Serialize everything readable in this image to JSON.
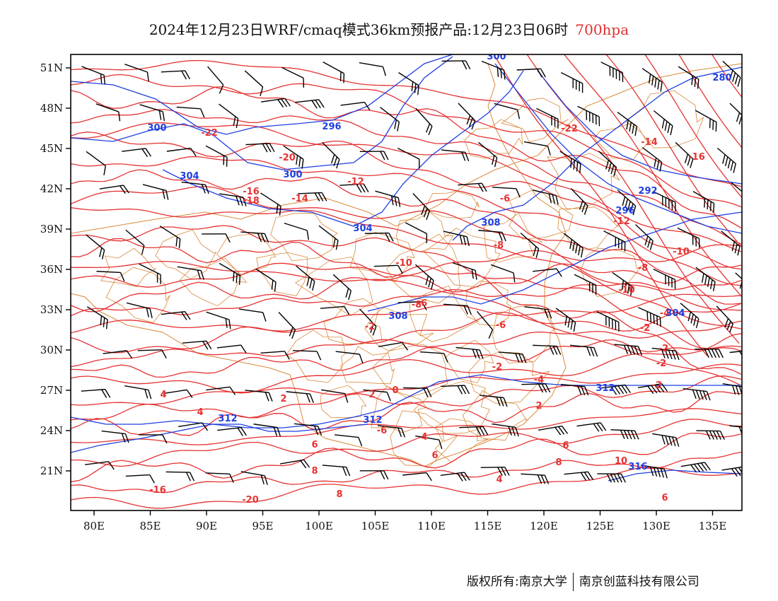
{
  "title": {
    "main": "2024年12月23日WRF/cmaq模式36km预报产品:12月23日06时",
    "level": "700hpa",
    "level_color": "#e03030"
  },
  "map": {
    "lon_ticks": [
      "80E",
      "85E",
      "90E",
      "95E",
      "100E",
      "105E",
      "110E",
      "115E",
      "120E",
      "125E",
      "130E",
      "135E"
    ],
    "lat_ticks": [
      "51N",
      "48N",
      "45N",
      "42N",
      "39N",
      "36N",
      "33N",
      "30N",
      "27N",
      "24N",
      "21N"
    ],
    "colors": {
      "temperature": "#e63232",
      "height": "#1f3fe0",
      "boundaries": "#d9893a",
      "wind_barbs": "#000000"
    },
    "temperature_labels": [
      "-22",
      "-20",
      "-16",
      "-18",
      "-14",
      "-12",
      "-10",
      "-10",
      "-8",
      "-6",
      "-2",
      "-2",
      "0",
      "2",
      "2",
      "4",
      "4",
      "6",
      "6",
      "8",
      "8",
      "-16",
      "-20",
      "-22",
      "-14",
      "-16",
      "-12",
      "-10",
      "-8",
      "-6",
      "-4",
      "-2",
      "-2",
      "-2",
      "-2",
      "2",
      "4",
      "6",
      "8",
      "10",
      "4",
      "6",
      "-8",
      "-6",
      "-4",
      "-6"
    ],
    "height_labels": [
      "300",
      "296",
      "300",
      "304",
      "304",
      "300",
      "308",
      "308",
      "312",
      "312",
      "312",
      "316",
      "292",
      "296",
      "304",
      "280"
    ]
  },
  "footer": {
    "copyright": "版权所有:南京大学",
    "company": "南京创蓝科技有限公司"
  }
}
